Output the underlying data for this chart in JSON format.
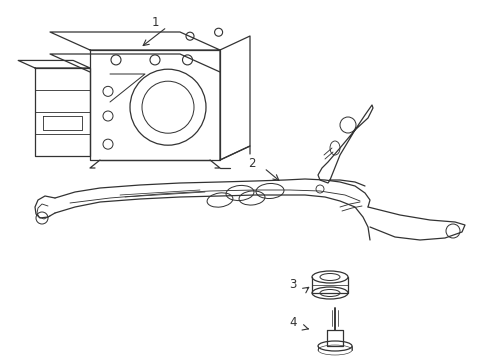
{
  "bg_color": "#ffffff",
  "line_color": "#333333",
  "lw": 0.9
}
